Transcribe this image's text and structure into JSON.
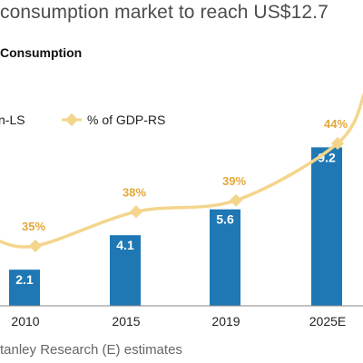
{
  "headline": "consumption market to reach US$12.7",
  "subtitle": "Consumption",
  "source": "tanley Research (E) estimates",
  "legend": {
    "bar_entry": "n-LS",
    "line_entry": "% of GDP-RS"
  },
  "colors": {
    "bar": "#1f78b4",
    "line": "#f3d58c",
    "pct_label": "#e3a83a",
    "axis": "#888888"
  },
  "chart_data": {
    "type": "bar",
    "categories": [
      "2010",
      "2015",
      "2019",
      "2025E"
    ],
    "series": [
      {
        "name": "n-LS",
        "type": "bar",
        "values": [
          2.1,
          4.1,
          5.6,
          9.2
        ],
        "value_labels": [
          "2.1",
          "4.1",
          "5.6",
          "9.2"
        ]
      },
      {
        "name": "% of GDP-RS",
        "type": "line",
        "values": [
          35,
          38,
          39,
          44
        ],
        "value_labels": [
          "35%",
          "38%",
          "39%",
          "44%"
        ]
      }
    ],
    "left_axis_range": [
      0,
      12
    ],
    "right_axis_range": [
      28,
      48
    ],
    "grid": false,
    "legend_position": "top-left"
  }
}
